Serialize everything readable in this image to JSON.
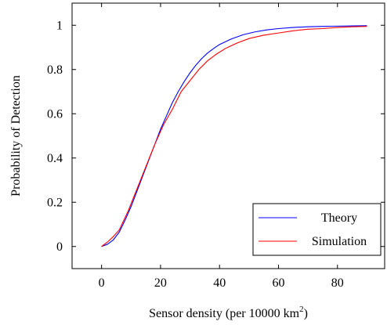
{
  "chart_data": {
    "type": "line",
    "title": "",
    "xlabel": "Sensor density (per 10000 km",
    "xlabel_sup": "2",
    "xlabel_suffix": ")",
    "ylabel": "Probability of Detection",
    "xlim": [
      -10,
      96
    ],
    "ylim": [
      -0.1,
      1.1
    ],
    "xticks": [
      0,
      20,
      40,
      60,
      80
    ],
    "yticks": [
      0,
      0.2,
      0.4,
      0.6,
      0.8,
      1
    ],
    "x_tick_labels": [
      "0",
      "20",
      "40",
      "60",
      "80"
    ],
    "y_tick_labels": [
      "0",
      "0.2",
      "0.4",
      "0.6",
      "0.8",
      "1"
    ],
    "grid": false,
    "legend_position": "bottom-right",
    "series": [
      {
        "name": "Theory",
        "color": "#0000ff",
        "x": [
          0,
          2,
          4,
          6,
          8,
          10,
          12,
          14,
          16,
          18,
          20,
          22,
          24,
          26,
          28,
          30,
          32,
          34,
          36,
          38,
          40,
          44,
          48,
          52,
          56,
          60,
          65,
          70,
          75,
          80,
          85,
          90
        ],
        "y": [
          0,
          0.01,
          0.03,
          0.065,
          0.12,
          0.18,
          0.25,
          0.32,
          0.39,
          0.46,
          0.53,
          0.59,
          0.65,
          0.7,
          0.745,
          0.785,
          0.82,
          0.85,
          0.875,
          0.895,
          0.913,
          0.938,
          0.957,
          0.97,
          0.979,
          0.985,
          0.99,
          0.993,
          0.995,
          0.996,
          0.997,
          0.998
        ]
      },
      {
        "name": "Simulation",
        "color": "#ff0000",
        "x": [
          0,
          2,
          4,
          6,
          9,
          12,
          15,
          18,
          21,
          24,
          27,
          30,
          33,
          36,
          39,
          42,
          46,
          50,
          55,
          60,
          65,
          70,
          75,
          80,
          85,
          90
        ],
        "y": [
          0,
          0.02,
          0.045,
          0.075,
          0.16,
          0.26,
          0.36,
          0.46,
          0.55,
          0.62,
          0.7,
          0.75,
          0.8,
          0.84,
          0.87,
          0.895,
          0.92,
          0.94,
          0.955,
          0.965,
          0.975,
          0.982,
          0.985,
          0.99,
          0.993,
          0.995
        ]
      }
    ]
  }
}
